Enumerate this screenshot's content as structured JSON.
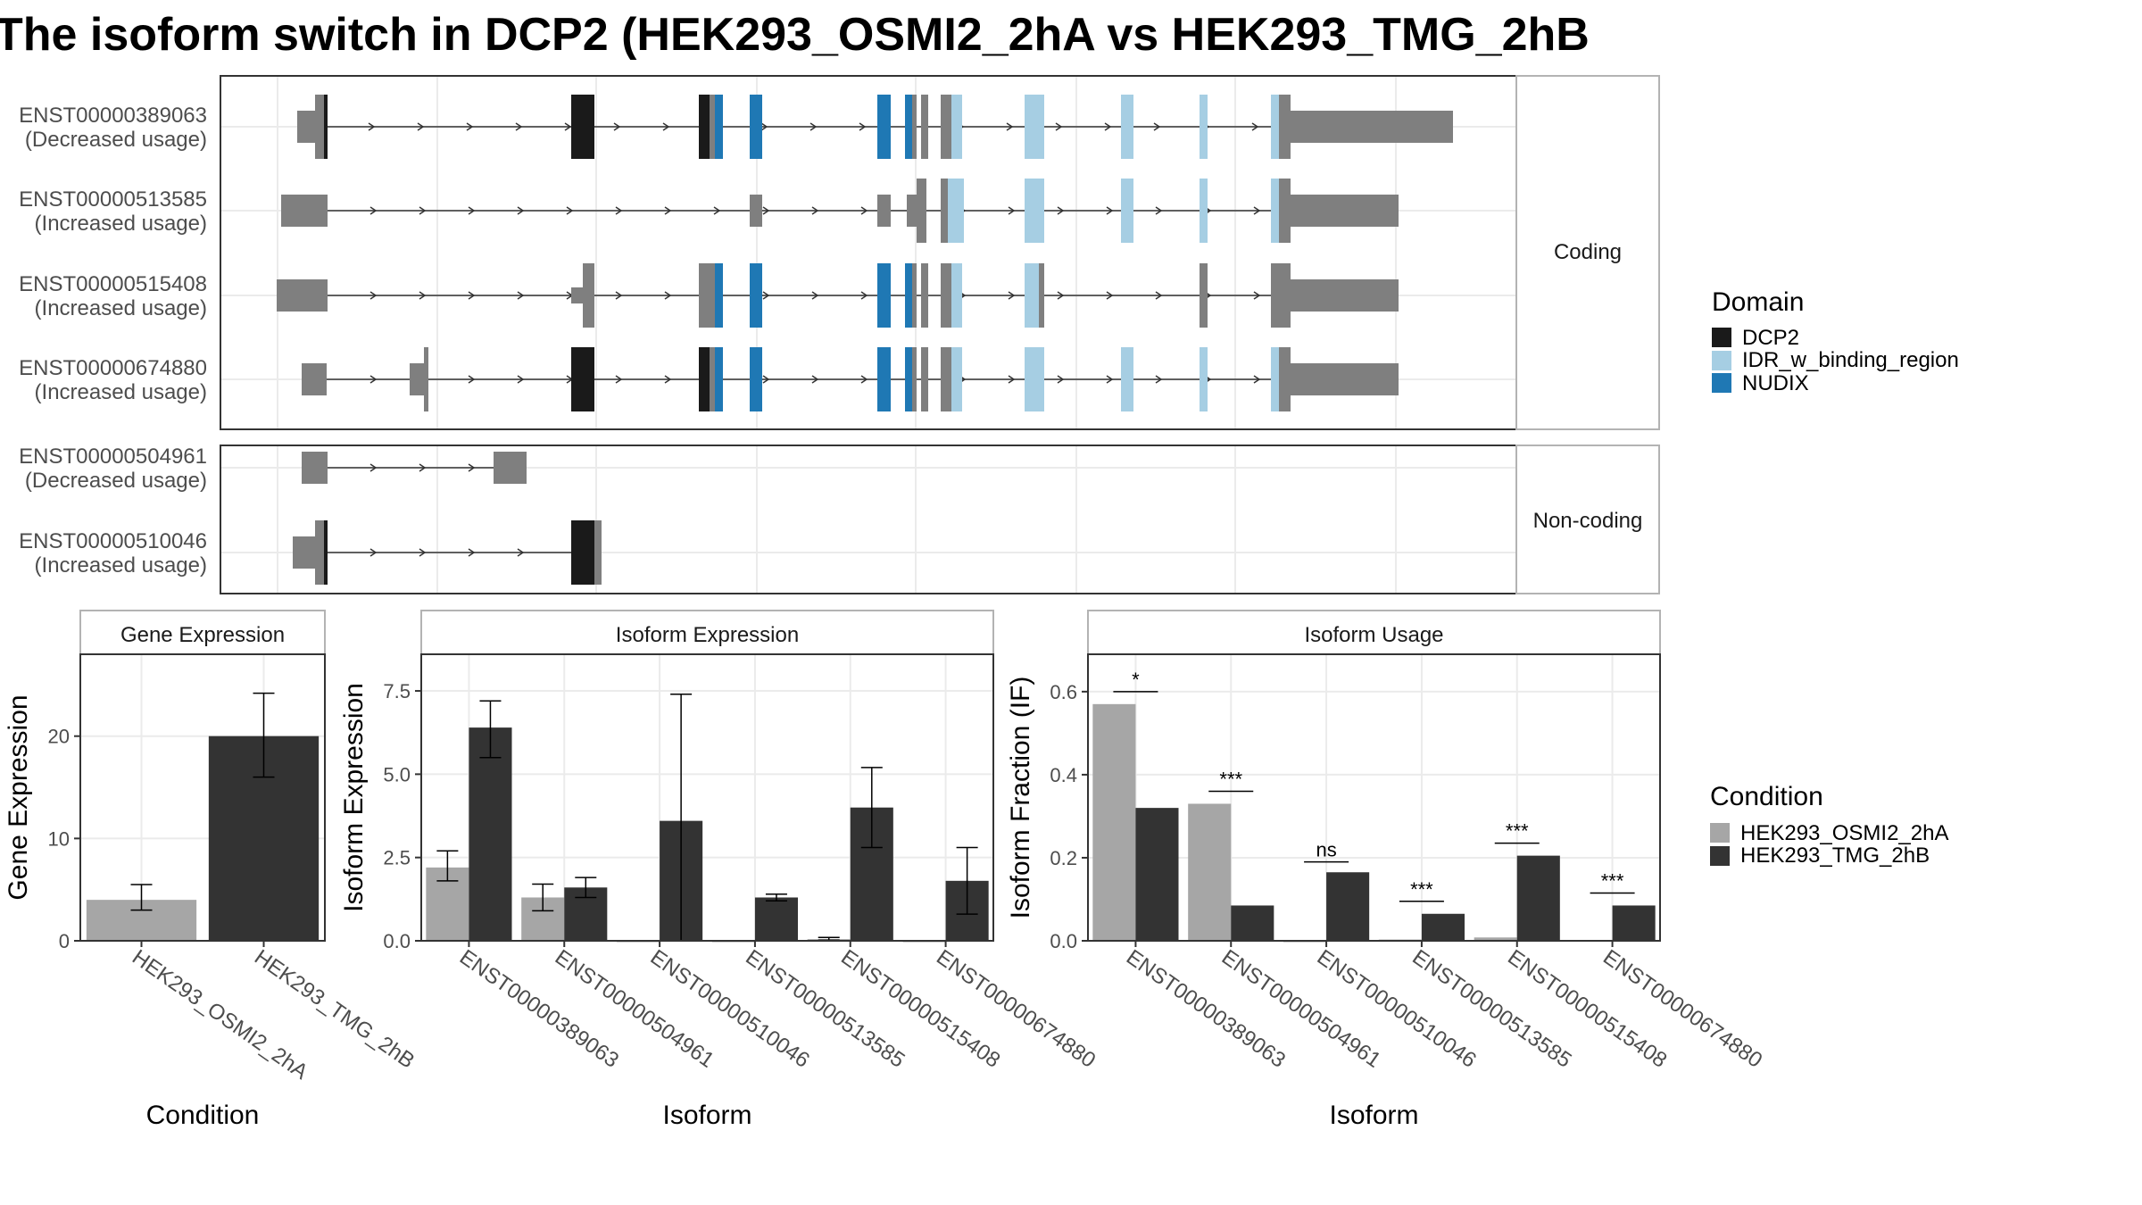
{
  "title": "The isoform switch in DCP2 (HEK293_OSMI2_2hA vs HEK293_TMG_2hB",
  "colors": {
    "exon": "#7f7f7f",
    "DCP2": "#1a1a1a",
    "IDR": "#a6cee3",
    "NUDIX": "#1f78b4",
    "cond1": "#a6a6a6",
    "cond2": "#333333",
    "panel_border": "#333333",
    "strip_border": "#b3b3b3",
    "grid": "#ebebeb"
  },
  "structure": {
    "facets": [
      "Coding",
      "Non-coding"
    ],
    "coding": [
      {
        "id": "ENST00000389063",
        "usage": "(Decreased usage)"
      },
      {
        "id": "ENST00000513585",
        "usage": "(Increased usage)"
      },
      {
        "id": "ENST00000515408",
        "usage": "(Increased usage)"
      },
      {
        "id": "ENST00000674880",
        "usage": "(Increased usage)"
      }
    ],
    "noncoding": [
      {
        "id": "ENST00000504961",
        "usage": "(Decreased usage)"
      },
      {
        "id": "ENST00000510046",
        "usage": "(Increased usage)"
      }
    ],
    "domain_legend": {
      "title": "Domain",
      "items": [
        {
          "label": "DCP2",
          "color": "#1a1a1a"
        },
        {
          "label": "IDR_w_binding_region",
          "color": "#a6cee3"
        },
        {
          "label": "NUDIX",
          "color": "#1f78b4"
        }
      ]
    }
  },
  "chart_data": [
    {
      "type": "bar",
      "panel": "Gene Expression",
      "xlabel": "Condition",
      "ylabel": "Gene Expression",
      "ylim": [
        0,
        28
      ],
      "yticks": [
        0,
        10,
        20
      ],
      "categories": [
        "HEK293_OSMI2_2hA",
        "HEK293_TMG_2hB"
      ],
      "values": [
        4.0,
        20.0
      ],
      "error": [
        [
          3.0,
          5.5
        ],
        [
          16.0,
          24.2
        ]
      ]
    },
    {
      "type": "bar",
      "panel": "Isoform Expression",
      "xlabel": "Isoform",
      "ylabel": "Isoform Expression",
      "ylim": [
        0,
        8.6
      ],
      "yticks": [
        "0.0",
        "2.5",
        "5.0",
        "7.5"
      ],
      "categories": [
        "ENST00000389063",
        "ENST00000504961",
        "ENST00000510046",
        "ENST00000513585",
        "ENST00000515408",
        "ENST00000674880"
      ],
      "series": [
        {
          "name": "HEK293_OSMI2_2hA",
          "values": [
            2.2,
            1.3,
            0.0,
            0.0,
            0.05,
            0.0
          ],
          "error": [
            [
              1.8,
              2.7
            ],
            [
              0.9,
              1.7
            ],
            [
              0.0,
              0.0
            ],
            [
              0.0,
              0.0
            ],
            [
              0.02,
              0.1
            ],
            [
              0.0,
              0.0
            ]
          ]
        },
        {
          "name": "HEK293_TMG_2hB",
          "values": [
            6.4,
            1.6,
            3.6,
            1.3,
            4.0,
            1.8
          ],
          "error": [
            [
              5.5,
              7.2
            ],
            [
              1.3,
              1.9
            ],
            [
              0.0,
              7.4
            ],
            [
              1.2,
              1.4
            ],
            [
              2.8,
              5.2
            ],
            [
              0.8,
              2.8
            ]
          ]
        }
      ]
    },
    {
      "type": "bar",
      "panel": "Isoform Usage",
      "xlabel": "Isoform",
      "ylabel": "Isoform Fraction (IF)",
      "ylim": [
        0,
        0.69
      ],
      "yticks": [
        "0.0",
        "0.2",
        "0.4",
        "0.6"
      ],
      "categories": [
        "ENST00000389063",
        "ENST00000504961",
        "ENST00000510046",
        "ENST00000513585",
        "ENST00000515408",
        "ENST00000674880"
      ],
      "series": [
        {
          "name": "HEK293_OSMI2_2hA",
          "values": [
            0.57,
            0.33,
            0.0,
            0.003,
            0.008,
            0.002
          ]
        },
        {
          "name": "HEK293_TMG_2hB",
          "values": [
            0.32,
            0.085,
            0.165,
            0.065,
            0.205,
            0.085
          ]
        }
      ],
      "significance": [
        "*",
        "***",
        "ns",
        "***",
        "***",
        "***"
      ],
      "sig_levels": [
        0.6,
        0.36,
        0.19,
        0.095,
        0.235,
        0.115
      ]
    }
  ],
  "condition_legend": {
    "title": "Condition",
    "items": [
      {
        "label": "HEK293_OSMI2_2hA",
        "color": "#a6a6a6"
      },
      {
        "label": "HEK293_TMG_2hB",
        "color": "#333333"
      }
    ]
  }
}
